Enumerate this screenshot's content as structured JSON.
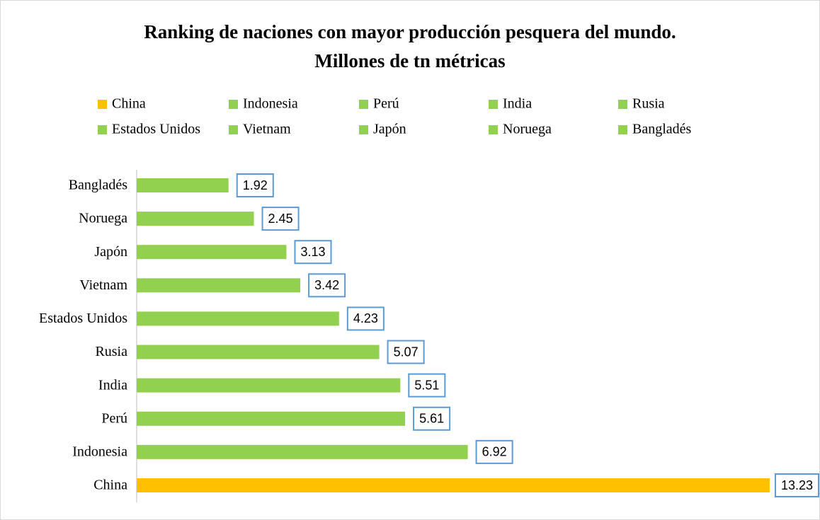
{
  "chart_data": {
    "type": "bar",
    "orientation": "horizontal",
    "title": [
      "Ranking de naciones con mayor producción pesquera del mundo.",
      "Millones de tn métricas"
    ],
    "categories": [
      "China",
      "Indonesia",
      "Perú",
      "India",
      "Rusia",
      "Estados Unidos",
      "Vietnam",
      "Japón",
      "Noruega",
      "Bangladés"
    ],
    "values": [
      13.23,
      6.92,
      5.61,
      5.51,
      5.07,
      4.23,
      3.42,
      3.13,
      2.45,
      1.92
    ],
    "colors": [
      "#ffc000",
      "#92d050",
      "#92d050",
      "#92d050",
      "#92d050",
      "#92d050",
      "#92d050",
      "#92d050",
      "#92d050",
      "#92d050"
    ],
    "xlim": [
      0,
      14
    ],
    "legend": "top",
    "data_labels": true
  }
}
